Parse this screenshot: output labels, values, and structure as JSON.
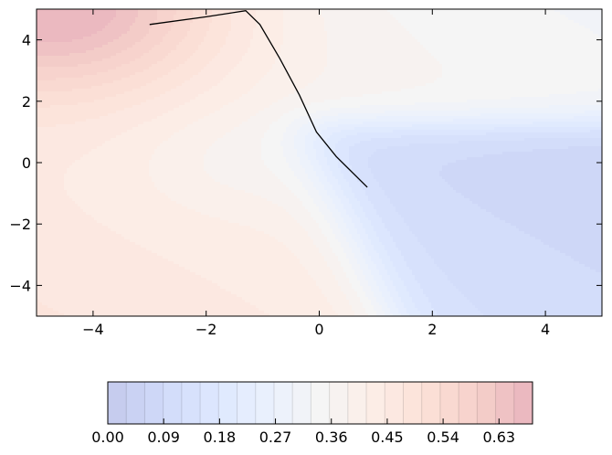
{
  "chart_data": {
    "type": "contourf",
    "title": "",
    "xlabel": "",
    "ylabel": "",
    "xlim": [
      -5,
      5
    ],
    "ylim": [
      -5,
      5
    ],
    "grid": false,
    "x_ticks": [
      -4,
      -2,
      0,
      2,
      4
    ],
    "y_ticks": [
      -4,
      -2,
      0,
      2,
      4
    ],
    "x_tick_labels": [
      "−4",
      "−2",
      "0",
      "2",
      "4"
    ],
    "y_tick_labels": [
      "−4",
      "−2",
      "0",
      "2",
      "4"
    ],
    "colormap": "coolwarm",
    "colorbar": {
      "orientation": "horizontal",
      "range": [
        0.0,
        0.684
      ],
      "n_levels": 23,
      "tick_values": [
        0.0,
        0.09,
        0.18,
        0.27,
        0.36,
        0.45,
        0.54,
        0.63
      ],
      "tick_labels": [
        "0.00",
        "0.09",
        "0.18",
        "0.27",
        "0.36",
        "0.45",
        "0.54",
        "0.63"
      ]
    },
    "path": {
      "color": "#000000",
      "points": [
        [
          -3.0,
          4.5
        ],
        [
          -2.0,
          4.75
        ],
        [
          -1.3,
          4.95
        ],
        [
          -1.05,
          4.5
        ],
        [
          -0.7,
          3.4
        ],
        [
          -0.35,
          2.2
        ],
        [
          -0.05,
          1.0
        ],
        [
          0.3,
          0.2
        ],
        [
          0.85,
          -0.8
        ]
      ]
    }
  }
}
